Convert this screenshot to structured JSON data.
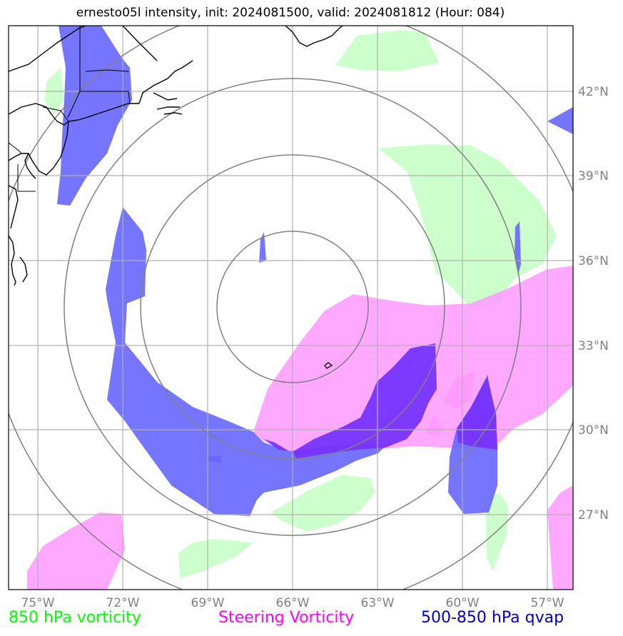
{
  "title": "ernesto05l intensity, init: 2024081500, valid: 2024081812 (Hour: 084)",
  "lon_labels": [
    "75°W",
    "72°W",
    "69°W",
    "66°W",
    "63°W",
    "60°W",
    "57°W"
  ],
  "lat_labels": [
    "42°N",
    "39°N",
    "36°N",
    "33°N",
    "30°N",
    "27°N"
  ],
  "legend": [
    {
      "label": "850 hPa vorticity",
      "color": "#00ff00"
    },
    {
      "label": "Steering Vorticity",
      "color": "#ff00ff"
    },
    {
      "label": "500-850 hPa qvap",
      "color": "#0000cd"
    }
  ],
  "colors": {
    "vorticity_850": "#ccffcc",
    "steering_vorticity": "#ff99ff",
    "qvap": "#6666ff",
    "qvap_dark": "#7733ff",
    "range_rings": "#808080",
    "gridlines": "#b0b0b0",
    "coastline": "#000000"
  },
  "map": {
    "extent_lon": [
      -76,
      -56
    ],
    "extent_lat": [
      24.5,
      44.5
    ],
    "center_lon": -66,
    "center_lat": 34.3
  }
}
